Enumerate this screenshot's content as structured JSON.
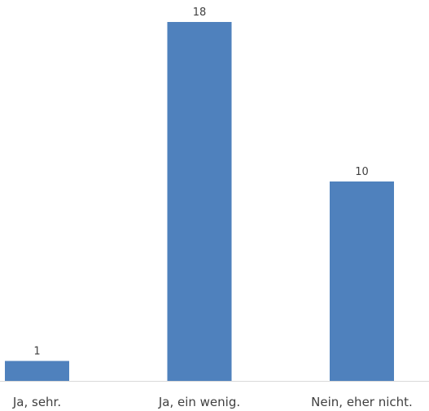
{
  "chart_data": {
    "type": "bar",
    "categories": [
      "Ja, sehr.",
      "Ja, ein wenig.",
      "Nein, eher nicht."
    ],
    "values": [
      1,
      18,
      10
    ],
    "title": "",
    "xlabel": "",
    "ylabel": "",
    "ylim": [
      0,
      18
    ],
    "grid": false,
    "legend": "none",
    "data_labels": true,
    "colors": {
      "bar": "#4f81bd",
      "axis": "#d9d9d9",
      "text": "#404040"
    }
  }
}
